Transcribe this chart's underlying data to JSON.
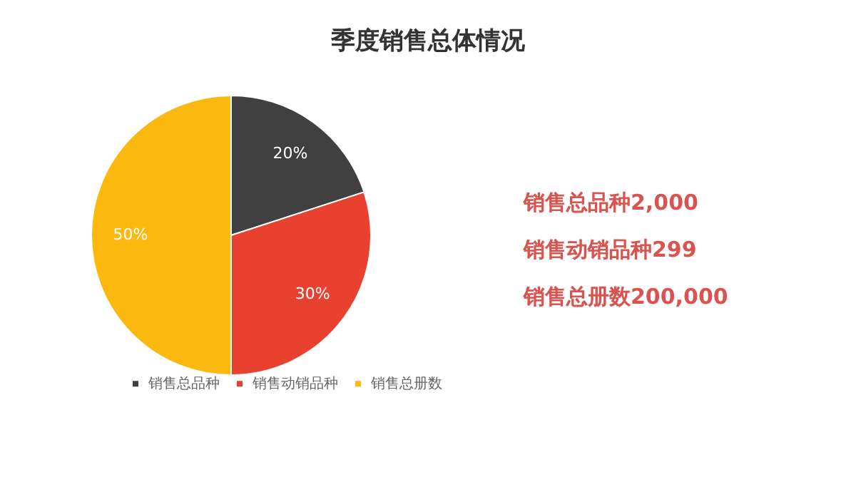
{
  "chart_data": {
    "type": "pie",
    "title": "季度销售总体情况",
    "categories": [
      "销售总品种",
      "销售动销品种",
      "销售总册数"
    ],
    "values": [
      20,
      30,
      50
    ],
    "colors": [
      "#404040",
      "#e8412f",
      "#fbb90f"
    ],
    "value_labels": [
      "20%",
      "30%",
      "50%"
    ],
    "legend": "bottom",
    "annotations": [
      "销售总品种2,000",
      "销售动销品种299",
      "销售总册数200,000"
    ]
  }
}
